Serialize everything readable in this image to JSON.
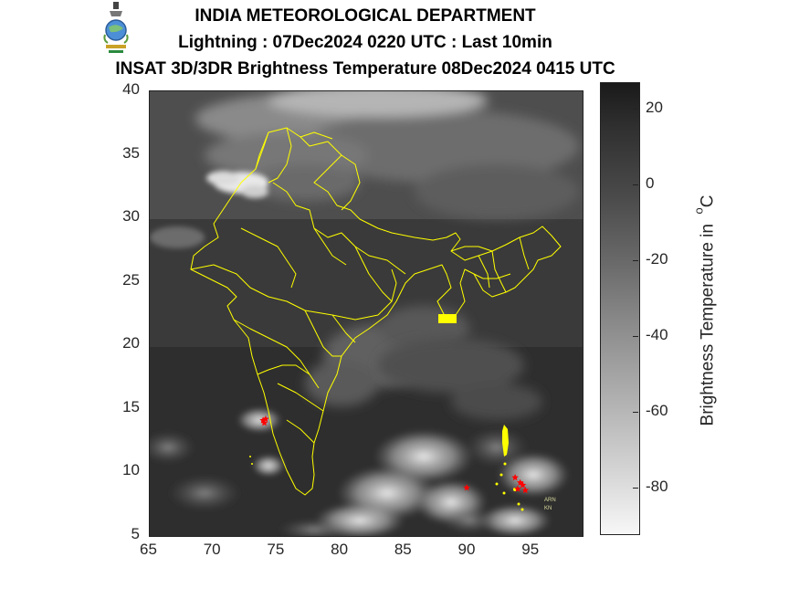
{
  "header": {
    "org": "INDIA METEOROLOGICAL DEPARTMENT",
    "lightning_line": "Lightning : 07Dec2024 0220 UTC : Last 10min",
    "satellite_line": "INSAT 3D/3DR Brightness Temperature 08Dec2024   0415 UTC"
  },
  "map": {
    "x_axis": {
      "min": 65,
      "max": 99,
      "ticks": [
        "65",
        "70",
        "75",
        "80",
        "85",
        "90",
        "95"
      ]
    },
    "y_axis": {
      "min": 5,
      "max": 40,
      "ticks": [
        "5",
        "10",
        "15",
        "20",
        "25",
        "30",
        "35",
        "40"
      ]
    },
    "boundary_color": "#ffff00",
    "lightning_color": "#ff0000",
    "lightning_strikes": [
      [
        74.1,
        14.2
      ],
      [
        74.0,
        13.9
      ],
      [
        73.9,
        14.1
      ],
      [
        93.7,
        9.6
      ],
      [
        94.1,
        9.2
      ],
      [
        94.3,
        9.0
      ],
      [
        94.5,
        8.6
      ],
      [
        93.9,
        8.7
      ],
      [
        89.9,
        8.8
      ]
    ],
    "island_labels": [
      "ARN",
      "KN"
    ]
  },
  "colorbar": {
    "label": "Brightness Temperature in",
    "unit_degree": "o",
    "unit": "C",
    "min": -92,
    "max": 27,
    "ticks": [
      "20",
      "0",
      "-20",
      "-40",
      "-60",
      "-80"
    ]
  }
}
